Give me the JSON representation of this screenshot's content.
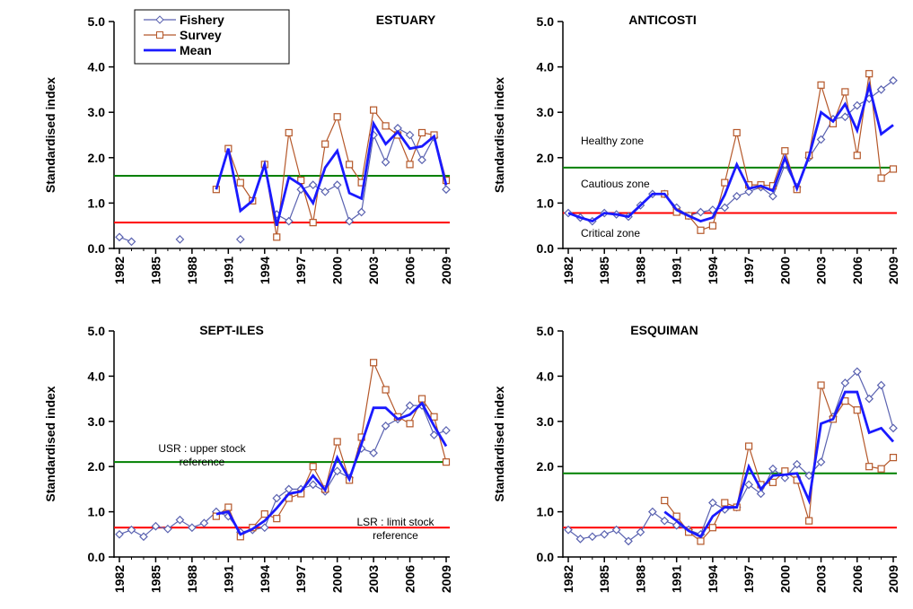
{
  "chart_data": [
    {
      "type": "line",
      "title": "ESTUARY",
      "y_label": "Standardised index",
      "x": [
        1982,
        1983,
        1984,
        1985,
        1986,
        1987,
        1988,
        1989,
        1990,
        1991,
        1992,
        1993,
        1994,
        1995,
        1996,
        1997,
        1998,
        1999,
        2000,
        2001,
        2002,
        2003,
        2004,
        2005,
        2006,
        2007,
        2008,
        2009
      ],
      "xlim": [
        1982,
        2009
      ],
      "xticks": [
        1982,
        1985,
        1988,
        1991,
        1994,
        1997,
        2000,
        2003,
        2006,
        2009
      ],
      "ylim": [
        0,
        5
      ],
      "yticks": [
        {
          "value": 0,
          "label": "0.0"
        },
        {
          "value": 1,
          "label": "1.0"
        },
        {
          "value": 2,
          "label": "2.0"
        },
        {
          "value": 3,
          "label": "3.0"
        },
        {
          "value": 4,
          "label": "4.0"
        },
        {
          "value": 5,
          "label": "5.0"
        }
      ],
      "legend": true,
      "series": [
        {
          "name": "Fishery",
          "color": "#5a62b0",
          "marker": "diamond",
          "values": [
            0.25,
            0.15,
            null,
            null,
            null,
            0.2,
            null,
            null,
            null,
            null,
            0.2,
            null,
            null,
            0.75,
            0.6,
            1.3,
            1.4,
            1.25,
            1.4,
            0.6,
            0.8,
            2.5,
            1.9,
            2.65,
            2.5,
            1.95,
            2.45,
            1.3
          ]
        },
        {
          "name": "Survey",
          "color": "#b5582a",
          "marker": "square",
          "values": [
            null,
            null,
            null,
            null,
            null,
            null,
            null,
            null,
            1.3,
            2.2,
            1.45,
            1.05,
            1.85,
            0.25,
            2.55,
            1.5,
            0.57,
            2.3,
            2.9,
            1.85,
            1.45,
            3.05,
            2.7,
            2.5,
            1.85,
            2.55,
            2.5,
            1.5
          ]
        },
        {
          "name": "Mean",
          "color": "#1a1aff",
          "marker": "none",
          "values": [
            null,
            null,
            null,
            null,
            null,
            null,
            null,
            null,
            1.3,
            2.2,
            0.83,
            1.05,
            1.85,
            0.5,
            1.57,
            1.4,
            1.0,
            1.78,
            2.15,
            1.22,
            1.1,
            2.75,
            2.3,
            2.57,
            2.2,
            2.25,
            2.47,
            1.4
          ]
        }
      ],
      "reference_lines": [
        {
          "value": 1.6,
          "color": "#008000"
        },
        {
          "value": 0.57,
          "color": "#ff0000"
        }
      ],
      "annotations": []
    },
    {
      "type": "line",
      "title": "ANTICOSTI",
      "y_label": "Standardised index",
      "x": [
        1982,
        1983,
        1984,
        1985,
        1986,
        1987,
        1988,
        1989,
        1990,
        1991,
        1992,
        1993,
        1994,
        1995,
        1996,
        1997,
        1998,
        1999,
        2000,
        2001,
        2002,
        2003,
        2004,
        2005,
        2006,
        2007,
        2008,
        2009
      ],
      "xlim": [
        1982,
        2009
      ],
      "xticks": [
        1982,
        1985,
        1988,
        1991,
        1994,
        1997,
        2000,
        2003,
        2006,
        2009
      ],
      "ylim": [
        0,
        5
      ],
      "yticks": [
        {
          "value": 0,
          "label": "0.0"
        },
        {
          "value": 1,
          "label": "1.0"
        },
        {
          "value": 2,
          "label": "2.0"
        },
        {
          "value": 3,
          "label": "3.0"
        },
        {
          "value": 4,
          "label": "4.0"
        },
        {
          "value": 5,
          "label": "5.0"
        }
      ],
      "series": [
        {
          "name": "Fishery",
          "color": "#5a62b0",
          "marker": "diamond",
          "values": [
            0.78,
            0.68,
            0.6,
            0.78,
            0.75,
            0.7,
            0.95,
            1.2,
            1.2,
            0.9,
            0.72,
            0.8,
            0.85,
            0.9,
            1.15,
            1.25,
            1.35,
            1.15,
            1.85,
            1.35,
            2.0,
            2.4,
            2.85,
            2.9,
            3.15,
            3.3,
            3.5,
            3.7
          ]
        },
        {
          "name": "Survey",
          "color": "#b5582a",
          "marker": "square",
          "values": [
            null,
            null,
            null,
            null,
            null,
            null,
            null,
            null,
            1.2,
            0.8,
            0.72,
            0.4,
            0.5,
            1.45,
            2.55,
            1.4,
            1.4,
            1.38,
            2.15,
            1.3,
            2.05,
            3.6,
            2.75,
            3.45,
            2.05,
            3.85,
            1.55,
            1.75
          ]
        },
        {
          "name": "Mean",
          "color": "#1a1aff",
          "marker": "none",
          "values": [
            0.78,
            0.68,
            0.6,
            0.78,
            0.75,
            0.7,
            0.95,
            1.2,
            1.2,
            0.85,
            0.72,
            0.6,
            0.68,
            1.18,
            1.85,
            1.32,
            1.38,
            1.27,
            2.0,
            1.32,
            2.03,
            3.0,
            2.8,
            3.18,
            2.6,
            3.58,
            2.52,
            2.72
          ]
        }
      ],
      "reference_lines": [
        {
          "value": 1.78,
          "color": "#008000"
        },
        {
          "value": 0.78,
          "color": "#ff0000"
        }
      ],
      "annotations": [
        "Healthy zone",
        "Cautious zone",
        "Critical zone"
      ]
    },
    {
      "type": "line",
      "title": "SEPT-ILES",
      "y_label": "Standardised index",
      "x": [
        1982,
        1983,
        1984,
        1985,
        1986,
        1987,
        1988,
        1989,
        1990,
        1991,
        1992,
        1993,
        1994,
        1995,
        1996,
        1997,
        1998,
        1999,
        2000,
        2001,
        2002,
        2003,
        2004,
        2005,
        2006,
        2007,
        2008,
        2009
      ],
      "xlim": [
        1982,
        2009
      ],
      "xticks": [
        1982,
        1985,
        1988,
        1991,
        1994,
        1997,
        2000,
        2003,
        2006,
        2009
      ],
      "ylim": [
        0,
        5
      ],
      "yticks": [
        {
          "value": 0,
          "label": "0.0"
        },
        {
          "value": 1,
          "label": "1.0"
        },
        {
          "value": 2,
          "label": "2.0"
        },
        {
          "value": 3,
          "label": "3.0"
        },
        {
          "value": 4,
          "label": "4.0"
        },
        {
          "value": 5,
          "label": "5.0"
        }
      ],
      "series": [
        {
          "name": "Fishery",
          "color": "#5a62b0",
          "marker": "diamond",
          "values": [
            0.5,
            0.6,
            0.45,
            0.68,
            0.62,
            0.82,
            0.65,
            0.75,
            1.0,
            0.9,
            0.55,
            0.6,
            0.65,
            1.3,
            1.5,
            1.5,
            1.6,
            1.45,
            1.9,
            1.75,
            2.4,
            2.3,
            2.9,
            3.05,
            3.35,
            3.35,
            2.7,
            2.8
          ]
        },
        {
          "name": "Survey",
          "color": "#b5582a",
          "marker": "square",
          "values": [
            null,
            null,
            null,
            null,
            null,
            null,
            null,
            null,
            0.9,
            1.1,
            0.45,
            0.65,
            0.95,
            0.85,
            1.3,
            1.4,
            2.0,
            1.5,
            2.55,
            1.7,
            2.65,
            4.3,
            3.7,
            3.1,
            2.95,
            3.5,
            3.1,
            2.1
          ]
        },
        {
          "name": "Mean",
          "color": "#1a1aff",
          "marker": "none",
          "values": [
            null,
            null,
            null,
            null,
            null,
            null,
            null,
            null,
            0.95,
            1.0,
            0.5,
            0.62,
            0.8,
            1.08,
            1.4,
            1.45,
            1.8,
            1.48,
            2.2,
            1.72,
            2.5,
            3.3,
            3.3,
            3.05,
            3.15,
            3.4,
            2.9,
            2.45
          ]
        }
      ],
      "reference_lines": [
        {
          "value": 2.1,
          "color": "#008000"
        },
        {
          "value": 0.65,
          "color": "#ff0000"
        }
      ],
      "annotations": [
        "USR : upper stock reference",
        "LSR : limit stock reference"
      ]
    },
    {
      "type": "line",
      "title": "ESQUIMAN",
      "y_label": "Standardised index",
      "x": [
        1982,
        1983,
        1984,
        1985,
        1986,
        1987,
        1988,
        1989,
        1990,
        1991,
        1992,
        1993,
        1994,
        1995,
        1996,
        1997,
        1998,
        1999,
        2000,
        2001,
        2002,
        2003,
        2004,
        2005,
        2006,
        2007,
        2008,
        2009
      ],
      "xlim": [
        1982,
        2009
      ],
      "xticks": [
        1982,
        1985,
        1988,
        1991,
        1994,
        1997,
        2000,
        2003,
        2006,
        2009
      ],
      "ylim": [
        0,
        5
      ],
      "yticks": [
        {
          "value": 0,
          "label": "0.0"
        },
        {
          "value": 1,
          "label": "1.0"
        },
        {
          "value": 2,
          "label": "2.0"
        },
        {
          "value": 3,
          "label": "3.0"
        },
        {
          "value": 4,
          "label": "4.0"
        },
        {
          "value": 5,
          "label": "5.0"
        }
      ],
      "series": [
        {
          "name": "Fishery",
          "color": "#5a62b0",
          "marker": "diamond",
          "values": [
            0.6,
            0.4,
            0.45,
            0.5,
            0.6,
            0.35,
            0.55,
            1.0,
            0.8,
            0.7,
            0.6,
            0.5,
            1.2,
            1.05,
            1.1,
            1.6,
            1.4,
            1.95,
            1.75,
            2.05,
            1.8,
            2.1,
            3.1,
            3.85,
            4.1,
            3.5,
            3.8,
            2.85
          ]
        },
        {
          "name": "Survey",
          "color": "#b5582a",
          "marker": "square",
          "values": [
            null,
            null,
            null,
            null,
            null,
            null,
            null,
            null,
            1.25,
            0.9,
            0.55,
            0.35,
            0.65,
            1.2,
            1.1,
            2.45,
            1.6,
            1.65,
            1.9,
            1.7,
            0.8,
            3.8,
            3.05,
            3.45,
            3.25,
            2.0,
            1.95,
            2.2
          ]
        },
        {
          "name": "Mean",
          "color": "#1a1aff",
          "marker": "none",
          "values": [
            null,
            null,
            null,
            null,
            null,
            null,
            null,
            null,
            1.0,
            0.8,
            0.58,
            0.45,
            0.9,
            1.1,
            1.1,
            2.0,
            1.5,
            1.8,
            1.82,
            1.85,
            1.25,
            2.95,
            3.05,
            3.65,
            3.65,
            2.75,
            2.85,
            2.55
          ]
        }
      ],
      "reference_lines": [
        {
          "value": 1.85,
          "color": "#008000"
        },
        {
          "value": 0.65,
          "color": "#ff0000"
        }
      ],
      "annotations": []
    }
  ]
}
